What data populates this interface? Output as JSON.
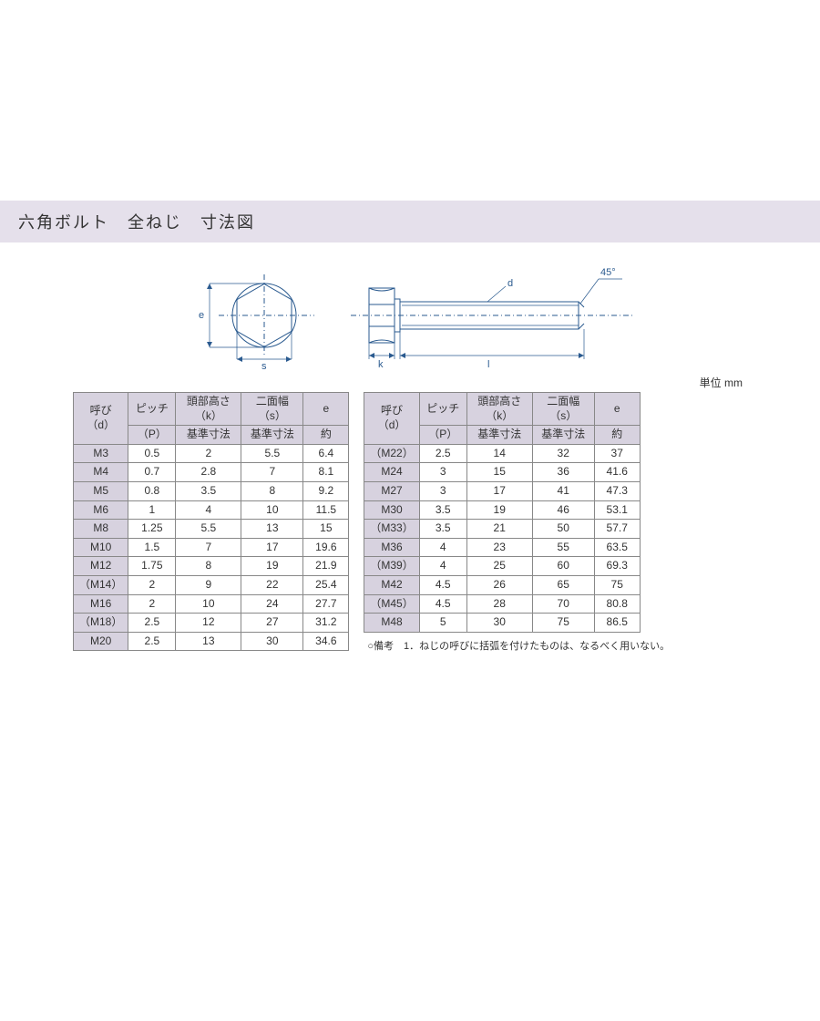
{
  "title": "六角ボルト　全ねじ　寸法図",
  "unit_label": "単位 mm",
  "diagram": {
    "labels": {
      "e": "e",
      "s": "s",
      "k": "k",
      "l": "l",
      "d": "d",
      "angle": "45°"
    }
  },
  "headers": {
    "d": "呼び（d）",
    "p_top": "ピッチ",
    "p_bot": "（P）",
    "k_top": "頭部高さ（k）",
    "k_bot": "基準寸法",
    "s_top": "二面幅（s）",
    "s_bot": "基準寸法",
    "e_top": "e",
    "e_bot": "約"
  },
  "table_left": {
    "rows": [
      [
        "M3",
        "0.5",
        "2",
        "5.5",
        "6.4"
      ],
      [
        "M4",
        "0.7",
        "2.8",
        "7",
        "8.1"
      ],
      [
        "M5",
        "0.8",
        "3.5",
        "8",
        "9.2"
      ],
      [
        "M6",
        "1",
        "4",
        "10",
        "11.5"
      ],
      [
        "M8",
        "1.25",
        "5.5",
        "13",
        "15"
      ],
      [
        "M10",
        "1.5",
        "7",
        "17",
        "19.6"
      ],
      [
        "M12",
        "1.75",
        "8",
        "19",
        "21.9"
      ],
      [
        "（M14）",
        "2",
        "9",
        "22",
        "25.4"
      ],
      [
        "M16",
        "2",
        "10",
        "24",
        "27.7"
      ],
      [
        "（M18）",
        "2.5",
        "12",
        "27",
        "31.2"
      ],
      [
        "M20",
        "2.5",
        "13",
        "30",
        "34.6"
      ]
    ]
  },
  "table_right": {
    "rows": [
      [
        "（M22）",
        "2.5",
        "14",
        "32",
        "37"
      ],
      [
        "M24",
        "3",
        "15",
        "36",
        "41.6"
      ],
      [
        "M27",
        "3",
        "17",
        "41",
        "47.3"
      ],
      [
        "M30",
        "3.5",
        "19",
        "46",
        "53.1"
      ],
      [
        "（M33）",
        "3.5",
        "21",
        "50",
        "57.7"
      ],
      [
        "M36",
        "4",
        "23",
        "55",
        "63.5"
      ],
      [
        "（M39）",
        "4",
        "25",
        "60",
        "69.3"
      ],
      [
        "M42",
        "4.5",
        "26",
        "65",
        "75"
      ],
      [
        "（M45）",
        "4.5",
        "28",
        "70",
        "80.8"
      ],
      [
        "M48",
        "5",
        "30",
        "75",
        "86.5"
      ]
    ]
  },
  "footnote": "○備考　1．ねじの呼びに括弧を付けたものは、なるべく用いない。"
}
